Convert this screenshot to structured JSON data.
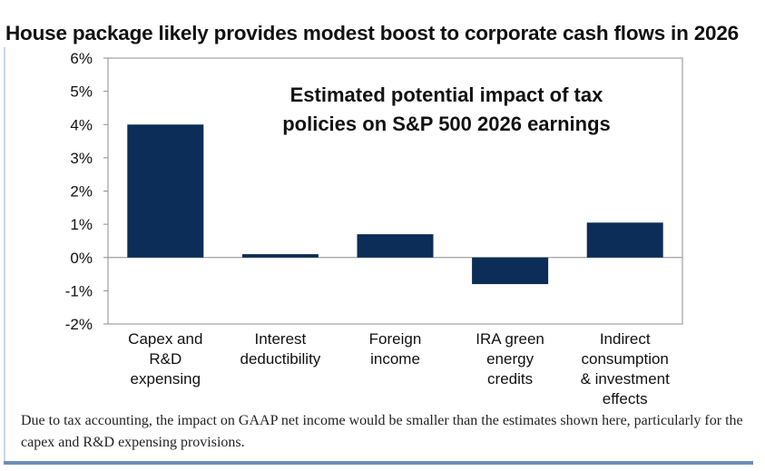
{
  "headline": "House package likely provides modest boost to corporate cash flows in 2026",
  "footnote": "Due to tax accounting, the impact on GAAP net income would be smaller than the estimates shown here, particularly for the capex and R&D expensing provisions.",
  "colors": {
    "bar": "#0b2d57",
    "accent_rule": "#6f8db8"
  },
  "chart_data": {
    "type": "bar",
    "title": "Estimated potential impact of tax policies on S&P 500 2026 earnings",
    "title_lines": [
      "Estimated potential impact of tax",
      "policies on S&P 500 2026 earnings"
    ],
    "categories": [
      "Capex and R&D expensing",
      "Interest deductibility",
      "Foreign income",
      "IRA green energy credits",
      "Indirect consumption & investment effects"
    ],
    "category_lines": [
      [
        "Capex and",
        "R&D",
        "expensing"
      ],
      [
        "Interest",
        "deductibility"
      ],
      [
        "Foreign",
        "income"
      ],
      [
        "IRA green",
        "energy",
        "credits"
      ],
      [
        "Indirect",
        "consumption",
        "& investment",
        "effects"
      ]
    ],
    "values": [
      4.0,
      0.1,
      0.7,
      -0.8,
      1.05
    ],
    "ylim": [
      -2,
      6
    ],
    "yticks": [
      -2,
      -1,
      0,
      1,
      2,
      3,
      4,
      5,
      6
    ],
    "ytick_labels": [
      "-2%",
      "-1%",
      "0%",
      "1%",
      "2%",
      "3%",
      "4%",
      "5%",
      "6%"
    ],
    "xlabel": "",
    "ylabel": "",
    "grid": false,
    "legend": "none"
  }
}
